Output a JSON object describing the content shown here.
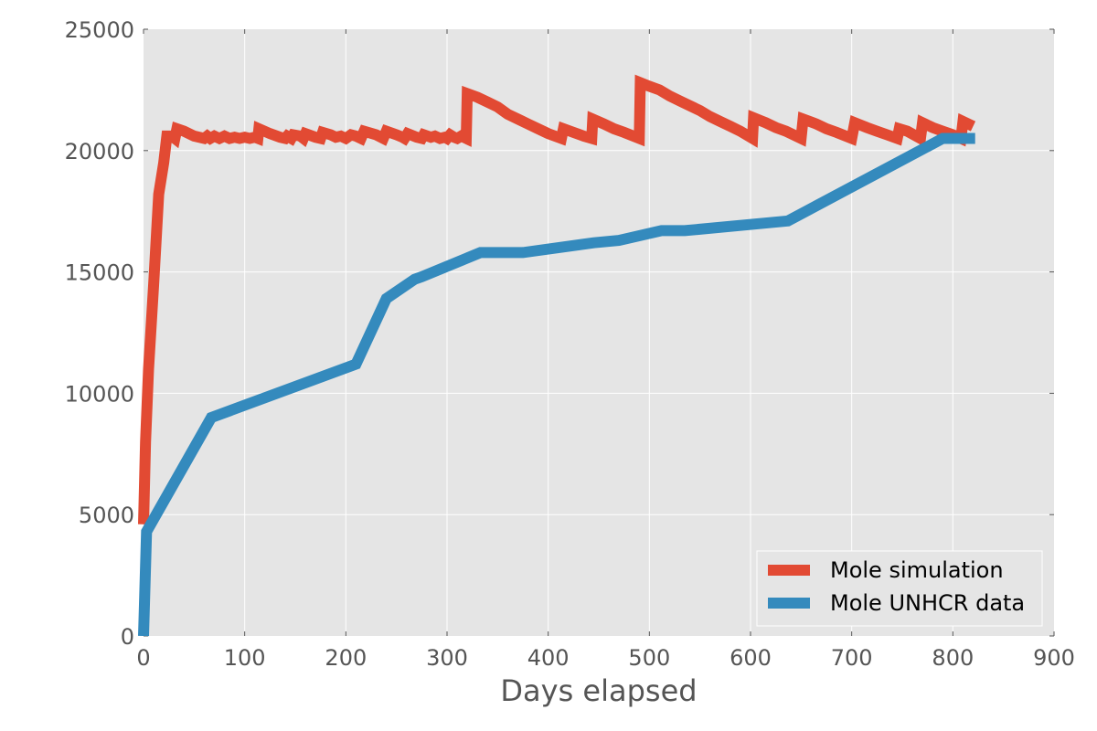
{
  "chart_data": {
    "type": "line",
    "title": "",
    "xlabel": "Days elapsed",
    "ylabel": "",
    "xlim": [
      0,
      900
    ],
    "ylim": [
      0,
      25000
    ],
    "xticks": [
      "0",
      "100",
      "200",
      "300",
      "400",
      "500",
      "600",
      "700",
      "800",
      "900"
    ],
    "yticks": [
      "0",
      "5000",
      "10000",
      "15000",
      "20000",
      "25000"
    ],
    "grid": true,
    "legend_position": "lower-right",
    "series": [
      {
        "name": "Mole simulation",
        "color": "#E24A33",
        "points": [
          [
            0,
            4600
          ],
          [
            2,
            8000
          ],
          [
            5,
            11000
          ],
          [
            10,
            14500
          ],
          [
            15,
            18200
          ],
          [
            20,
            19500
          ],
          [
            23,
            20600
          ],
          [
            28,
            20600
          ],
          [
            31,
            20500
          ],
          [
            33,
            20900
          ],
          [
            40,
            20800
          ],
          [
            50,
            20600
          ],
          [
            60,
            20500
          ],
          [
            63,
            20600
          ],
          [
            66,
            20500
          ],
          [
            70,
            20600
          ],
          [
            75,
            20500
          ],
          [
            80,
            20600
          ],
          [
            85,
            20500
          ],
          [
            90,
            20550
          ],
          [
            95,
            20500
          ],
          [
            100,
            20550
          ],
          [
            105,
            20500
          ],
          [
            110,
            20550
          ],
          [
            113,
            20500
          ],
          [
            114,
            20900
          ],
          [
            125,
            20700
          ],
          [
            135,
            20550
          ],
          [
            140,
            20500
          ],
          [
            142,
            20600
          ],
          [
            146,
            20500
          ],
          [
            148,
            20650
          ],
          [
            155,
            20600
          ],
          [
            158,
            20500
          ],
          [
            160,
            20700
          ],
          [
            170,
            20550
          ],
          [
            175,
            20500
          ],
          [
            177,
            20750
          ],
          [
            185,
            20650
          ],
          [
            190,
            20550
          ],
          [
            195,
            20600
          ],
          [
            200,
            20500
          ],
          [
            205,
            20650
          ],
          [
            210,
            20600
          ],
          [
            215,
            20500
          ],
          [
            218,
            20800
          ],
          [
            230,
            20650
          ],
          [
            237,
            20500
          ],
          [
            240,
            20800
          ],
          [
            250,
            20650
          ],
          [
            256,
            20550
          ],
          [
            258,
            20500
          ],
          [
            261,
            20700
          ],
          [
            270,
            20550
          ],
          [
            275,
            20500
          ],
          [
            277,
            20650
          ],
          [
            284,
            20550
          ],
          [
            288,
            20600
          ],
          [
            293,
            20500
          ],
          [
            298,
            20550
          ],
          [
            300,
            20500
          ],
          [
            303,
            20650
          ],
          [
            307,
            20550
          ],
          [
            310,
            20500
          ],
          [
            314,
            20600
          ],
          [
            319,
            20500
          ],
          [
            320,
            22350
          ],
          [
            330,
            22200
          ],
          [
            340,
            22000
          ],
          [
            350,
            21800
          ],
          [
            360,
            21500
          ],
          [
            370,
            21300
          ],
          [
            380,
            21100
          ],
          [
            390,
            20900
          ],
          [
            400,
            20700
          ],
          [
            413,
            20500
          ],
          [
            415,
            20900
          ],
          [
            425,
            20750
          ],
          [
            435,
            20600
          ],
          [
            443,
            20500
          ],
          [
            444,
            21300
          ],
          [
            455,
            21100
          ],
          [
            465,
            20900
          ],
          [
            475,
            20750
          ],
          [
            490,
            20500
          ],
          [
            491,
            22800
          ],
          [
            500,
            22650
          ],
          [
            510,
            22500
          ],
          [
            520,
            22250
          ],
          [
            530,
            22050
          ],
          [
            540,
            21850
          ],
          [
            550,
            21650
          ],
          [
            560,
            21400
          ],
          [
            570,
            21200
          ],
          [
            580,
            21000
          ],
          [
            590,
            20800
          ],
          [
            602,
            20500
          ],
          [
            603,
            21350
          ],
          [
            615,
            21150
          ],
          [
            625,
            20950
          ],
          [
            635,
            20800
          ],
          [
            650,
            20500
          ],
          [
            652,
            21300
          ],
          [
            665,
            21100
          ],
          [
            675,
            20900
          ],
          [
            685,
            20750
          ],
          [
            700,
            20500
          ],
          [
            703,
            21150
          ],
          [
            715,
            20950
          ],
          [
            725,
            20800
          ],
          [
            735,
            20650
          ],
          [
            745,
            20500
          ],
          [
            747,
            20900
          ],
          [
            755,
            20800
          ],
          [
            768,
            20500
          ],
          [
            770,
            21150
          ],
          [
            780,
            20950
          ],
          [
            790,
            20800
          ],
          [
            800,
            20650
          ],
          [
            808,
            20500
          ],
          [
            810,
            21200
          ],
          [
            820,
            21000
          ]
        ]
      },
      {
        "name": "Mole UNHCR data",
        "color": "#348ABD",
        "points": [
          [
            0,
            0
          ],
          [
            3,
            4300
          ],
          [
            67,
            9000
          ],
          [
            210,
            11200
          ],
          [
            240,
            13900
          ],
          [
            268,
            14700
          ],
          [
            275,
            14800
          ],
          [
            333,
            15800
          ],
          [
            375,
            15800
          ],
          [
            445,
            16200
          ],
          [
            470,
            16300
          ],
          [
            512,
            16700
          ],
          [
            535,
            16700
          ],
          [
            637,
            17100
          ],
          [
            790,
            20500
          ],
          [
            822,
            20500
          ]
        ]
      }
    ]
  }
}
